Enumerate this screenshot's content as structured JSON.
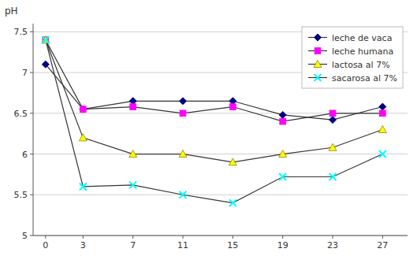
{
  "chart_data": {
    "type": "line",
    "ylabel": "pH",
    "x": [
      0,
      3,
      7,
      11,
      15,
      19,
      23,
      27
    ],
    "xlim": [
      -1,
      29
    ],
    "xticks": [
      0,
      3,
      7,
      11,
      15,
      19,
      23,
      27
    ],
    "ylim": [
      5.0,
      7.6
    ],
    "yticks": [
      5.0,
      5.5,
      6.0,
      6.5,
      7.0,
      7.5
    ],
    "grid": true,
    "legend": "upper right",
    "series": [
      {
        "name": "leche de vaca",
        "color": "#000080",
        "marker": "diamond",
        "values": [
          7.1,
          6.55,
          6.65,
          6.65,
          6.65,
          6.48,
          6.42,
          6.58
        ]
      },
      {
        "name": "leche humana",
        "color": "#ff00ff",
        "marker": "square",
        "values": [
          7.4,
          6.55,
          6.58,
          6.5,
          6.58,
          6.4,
          6.5,
          6.5
        ]
      },
      {
        "name": "lactosa al 7%",
        "color": "#ffff00",
        "marker": "triangle",
        "values": [
          7.4,
          6.2,
          6.0,
          6.0,
          5.9,
          6.0,
          6.08,
          6.3
        ]
      },
      {
        "name": "sacarosa al 7%",
        "color": "#00ffff",
        "marker": "x",
        "values": [
          7.4,
          5.6,
          5.62,
          5.5,
          5.4,
          5.72,
          5.72,
          6.0
        ]
      }
    ]
  }
}
